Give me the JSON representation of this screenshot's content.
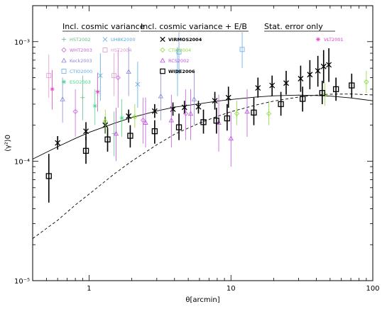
{
  "chart_data": {
    "type": "scatter",
    "xscale": "log",
    "yscale": "log",
    "xlim": [
      0.4,
      100
    ],
    "ylim": [
      1e-05,
      0.002
    ],
    "xlabel": "θ[arcmin]",
    "ylabel": "⟨γ²⟩0",
    "x_ticks": [
      {
        "value": 1,
        "label": "1"
      },
      {
        "value": 10,
        "label": "10"
      },
      {
        "value": 100,
        "label": "100"
      }
    ],
    "y_ticks": [
      {
        "value": 1e-05,
        "label": "10⁻⁵"
      },
      {
        "value": 0.0001,
        "label": "10⁻⁴"
      },
      {
        "value": 0.001,
        "label": "10⁻³"
      }
    ],
    "legend_groups": [
      {
        "title": "Incl. cosmic variance"
      },
      {
        "title": "Incl. cosmic variance + E/B"
      },
      {
        "title": "Stat. error only"
      }
    ],
    "series": [
      {
        "name": "HST2002",
        "color": "#66bb88",
        "marker": "plus",
        "group": 0,
        "points": [
          [
            0.9,
            0.00034,
            0.00022,
            0.00052
          ],
          [
            1.5,
            0.00017,
            0.00011,
            0.00026
          ]
        ]
      },
      {
        "name": "UH8K2000",
        "color": "#55aadd",
        "marker": "x",
        "group": 0,
        "points": [
          [
            1.2,
            0.00052,
            0.00032,
            0.0008
          ],
          [
            2.2,
            0.00044,
            0.00028,
            0.00068
          ],
          [
            4.2,
            0.00056,
            0.00035,
            0.0009
          ]
        ]
      },
      {
        "name": "WHT2003",
        "color": "#cc66dd",
        "marker": "diamond",
        "group": 0,
        "points": [
          [
            0.8,
            0.00026,
            0.00016,
            0.0004
          ],
          [
            1.6,
            0.0005,
            0.00028,
            0.00085
          ],
          [
            2.4,
            0.00022,
            0.00014,
            0.00034
          ],
          [
            4.8,
            0.00025,
            0.00015,
            0.0004
          ]
        ]
      },
      {
        "name": "HST2004",
        "color": "#dd99cc",
        "marker": "square",
        "group": 0,
        "points": [
          [
            0.52,
            0.00052,
            0.00034,
            0.00078
          ],
          [
            1.5,
            0.00052,
            0.00035,
            0.0008
          ]
        ]
      },
      {
        "name": "Keck2003",
        "color": "#8888dd",
        "marker": "triangle",
        "group": 0,
        "points": [
          [
            0.65,
            0.00033,
            0.00021,
            0.0005
          ],
          [
            1.9,
            0.00056,
            0.00035,
            0.0009
          ],
          [
            3.2,
            0.00035,
            0.00022,
            0.00055
          ],
          [
            5.5,
            0.00033,
            0.0002,
            0.00055
          ]
        ]
      },
      {
        "name": "CTIO2000",
        "color": "#66aaee",
        "marker": "square",
        "group": 0,
        "points": [
          [
            4.3,
            0.00082,
            0.00055,
            0.0012
          ],
          [
            12,
            0.00086,
            0.0006,
            0.0012
          ]
        ]
      },
      {
        "name": "ESO2003",
        "color": "#44dd88",
        "marker": "star",
        "group": 0,
        "points": [
          [
            1.1,
            0.00029,
            0.0002,
            0.0004
          ],
          [
            1.7,
            0.00023,
            0.00016,
            0.00033
          ]
        ]
      },
      {
        "name": "VIRMOS2004",
        "color": "#000000",
        "marker": "x",
        "group": 1,
        "points": [
          [
            0.6,
            0.000142,
            0.000125,
            0.000162
          ],
          [
            0.95,
            0.000178,
            0.00015,
            0.000212
          ],
          [
            1.3,
            0.0002,
            0.00017,
            0.000235
          ],
          [
            1.9,
            0.000238,
            0.00021,
            0.00027
          ],
          [
            2.9,
            0.000262,
            0.00023,
            0.0003
          ],
          [
            3.9,
            0.000272,
            0.00024,
            0.00031
          ],
          [
            4.7,
            0.000282,
            0.00025,
            0.00032
          ],
          [
            5.9,
            0.000285,
            0.00025,
            0.00032
          ],
          [
            7.7,
            0.00032,
            0.00027,
            0.00038
          ],
          [
            9.6,
            0.00034,
            0.00028,
            0.00042
          ],
          [
            15.5,
            0.00041,
            0.00034,
            0.0005
          ],
          [
            19.5,
            0.00043,
            0.00035,
            0.00052
          ],
          [
            24.5,
            0.00045,
            0.00036,
            0.00057
          ],
          [
            31,
            0.00049,
            0.00038,
            0.00063
          ],
          [
            36,
            0.00053,
            0.0004,
            0.0007
          ],
          [
            41,
            0.00057,
            0.00042,
            0.00076
          ],
          [
            45,
            0.00062,
            0.00045,
            0.00085
          ],
          [
            49,
            0.00064,
            0.00046,
            0.00088
          ]
        ]
      },
      {
        "name": "CTIO2004",
        "color": "#88dd33",
        "marker": "diamond",
        "group": 1,
        "points": [
          [
            1.3,
            0.000215,
            0.00017,
            0.00027
          ],
          [
            2.1,
            0.000235,
            0.00019,
            0.0003
          ],
          [
            11,
            0.00025,
            0.0002,
            0.00032
          ],
          [
            18.5,
            0.00025,
            0.0002,
            0.00032
          ],
          [
            46,
            0.00036,
            0.00029,
            0.00045
          ],
          [
            90,
            0.00046,
            0.00037,
            0.00057
          ]
        ]
      },
      {
        "name": "RCS2002",
        "color": "#bb55dd",
        "marker": "triangle",
        "group": 1,
        "points": [
          [
            1.55,
            0.00017,
            0.0001,
            0.00028
          ],
          [
            2.5,
            0.00021,
            0.00013,
            0.00034
          ],
          [
            3.8,
            0.00022,
            0.00013,
            0.00036
          ],
          [
            5.2,
            0.00025,
            0.00015,
            0.0004
          ],
          [
            8.2,
            0.00021,
            0.00012,
            0.00036
          ],
          [
            10,
            0.000155,
            9e-05,
            0.00026
          ],
          [
            13,
            0.00026,
            0.00016,
            0.0004
          ]
        ]
      },
      {
        "name": "WIDE2006",
        "color": "#000000",
        "marker": "square",
        "group": 1,
        "points": [
          [
            0.52,
            7.5e-05,
            4.5e-05,
            0.000115
          ],
          [
            0.95,
            0.000122,
            9.5e-05,
            0.00016
          ],
          [
            1.35,
            0.000152,
            0.00012,
            0.00019
          ],
          [
            1.95,
            0.000163,
            0.00013,
            0.0002
          ],
          [
            2.9,
            0.000178,
            0.00014,
            0.00022
          ],
          [
            4.3,
            0.000192,
            0.00015,
            0.00025
          ],
          [
            6.4,
            0.000212,
            0.00017,
            0.00027
          ],
          [
            7.9,
            0.000218,
            0.00017,
            0.00028
          ],
          [
            9.4,
            0.000228,
            0.00018,
            0.0003
          ],
          [
            14.5,
            0.000255,
            0.0002,
            0.00034
          ],
          [
            22.5,
            0.0003,
            0.00024,
            0.00038
          ],
          [
            32,
            0.000332,
            0.00026,
            0.00042
          ],
          [
            44,
            0.000372,
            0.0003,
            0.00047
          ],
          [
            55,
            0.0004,
            0.00032,
            0.0005
          ],
          [
            71,
            0.00043,
            0.00034,
            0.00054
          ]
        ]
      },
      {
        "name": "VLT2001",
        "color": "#dd44cc",
        "marker": "star",
        "group": 2,
        "points": [
          [
            0.55,
            0.0004,
            0.00027,
            0.00058
          ],
          [
            1.15,
            0.00038,
            0.00026,
            0.00055
          ]
        ]
      }
    ],
    "curves": [
      {
        "style": "solid",
        "color": "#000000",
        "points": [
          [
            0.4,
            0.000104
          ],
          [
            0.6,
            0.000132
          ],
          [
            0.8,
            0.000155
          ],
          [
            1,
            0.000174
          ],
          [
            1.5,
            0.000207
          ],
          [
            2,
            0.000232
          ],
          [
            3,
            0.000263
          ],
          [
            4,
            0.000283
          ],
          [
            6,
            0.000302
          ],
          [
            8,
            0.000318
          ],
          [
            10,
            0.000328
          ],
          [
            15,
            0.000344
          ],
          [
            20,
            0.000352
          ],
          [
            30,
            0.000357
          ],
          [
            40,
            0.000354
          ],
          [
            50,
            0.00035
          ],
          [
            70,
            0.000338
          ],
          [
            100,
            0.00032
          ]
        ]
      },
      {
        "style": "dashed",
        "color": "#000000",
        "points": [
          [
            0.4,
            2.25e-05
          ],
          [
            0.6,
            3.2e-05
          ],
          [
            0.8,
            4.3e-05
          ],
          [
            1,
            5.3e-05
          ],
          [
            1.5,
            7.8e-05
          ],
          [
            2,
            0.0001
          ],
          [
            3,
            0.000137
          ],
          [
            4,
            0.000168
          ],
          [
            6,
            0.000208
          ],
          [
            8,
            0.000237
          ],
          [
            10,
            0.000259
          ],
          [
            15,
            0.000295
          ],
          [
            20,
            0.000318
          ],
          [
            30,
            0.000344
          ],
          [
            40,
            0.000357
          ],
          [
            50,
            0.000363
          ],
          [
            70,
            0.000365
          ],
          [
            100,
            0.000358
          ]
        ]
      }
    ]
  }
}
